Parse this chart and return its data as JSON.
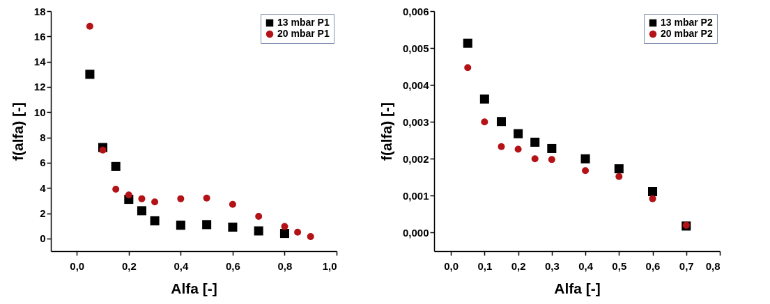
{
  "chart_data": [
    {
      "type": "scatter",
      "xlabel": "Alfa [-]",
      "ylabel": "f(alfa) [-]",
      "xlim": [
        -0.1,
        1.0
      ],
      "ylim": [
        -1,
        18
      ],
      "xticks": [
        {
          "value": 0,
          "label": "0,0"
        },
        {
          "value": 0.2,
          "label": "0,2"
        },
        {
          "value": 0.4,
          "label": "0,4"
        },
        {
          "value": 0.6,
          "label": "0,6"
        },
        {
          "value": 0.8,
          "label": "0,8"
        },
        {
          "value": 1.0,
          "label": "1,0"
        }
      ],
      "yticks": [
        0,
        2,
        4,
        6,
        8,
        10,
        12,
        14,
        16,
        18
      ],
      "legend": "top right",
      "grid": false,
      "series": [
        {
          "name": "13 mbar P1",
          "color": "#000000",
          "marker": "square",
          "x": [
            0.05,
            0.1,
            0.15,
            0.2,
            0.25,
            0.3,
            0.4,
            0.5,
            0.6,
            0.7,
            0.8
          ],
          "values": [
            13,
            7.2,
            5.7,
            3.1,
            2.2,
            1.4,
            1.05,
            1.1,
            0.9,
            0.6,
            0.4
          ]
        },
        {
          "name": "20 mbar P1",
          "color": "#b31217",
          "marker": "circle",
          "x": [
            0.05,
            0.1,
            0.15,
            0.2,
            0.25,
            0.3,
            0.4,
            0.5,
            0.6,
            0.7,
            0.8,
            0.85,
            0.9
          ],
          "values": [
            16.8,
            7.0,
            3.9,
            3.45,
            3.15,
            2.9,
            3.15,
            3.2,
            2.7,
            1.75,
            0.95,
            0.5,
            0.15
          ]
        }
      ]
    },
    {
      "type": "scatter",
      "xlabel": "Alfa [-]",
      "ylabel": "f(alfa) [-]",
      "xlim": [
        -0.05,
        0.8
      ],
      "ylim": [
        -0.0005,
        0.006
      ],
      "xticks": [
        {
          "value": 0,
          "label": "0,0"
        },
        {
          "value": 0.1,
          "label": "0,1"
        },
        {
          "value": 0.2,
          "label": "0,2"
        },
        {
          "value": 0.3,
          "label": "0,3"
        },
        {
          "value": 0.4,
          "label": "0,4"
        },
        {
          "value": 0.5,
          "label": "0,5"
        },
        {
          "value": 0.6,
          "label": "0,6"
        },
        {
          "value": 0.7,
          "label": "0,7"
        },
        {
          "value": 0.8,
          "label": "0,8"
        }
      ],
      "yticks": [
        {
          "value": 0,
          "label": "0,000"
        },
        {
          "value": 0.001,
          "label": "0,001"
        },
        {
          "value": 0.002,
          "label": "0,002"
        },
        {
          "value": 0.003,
          "label": "0,003"
        },
        {
          "value": 0.004,
          "label": "0,004"
        },
        {
          "value": 0.005,
          "label": "0,005"
        },
        {
          "value": 0.006,
          "label": "0,006"
        }
      ],
      "legend": "top right",
      "grid": false,
      "series": [
        {
          "name": "13 mbar P2",
          "color": "#000000",
          "marker": "square",
          "x": [
            0.05,
            0.1,
            0.15,
            0.2,
            0.25,
            0.3,
            0.4,
            0.5,
            0.6,
            0.7
          ],
          "values": [
            0.00513,
            0.00362,
            0.00301,
            0.00268,
            0.00245,
            0.00228,
            0.002,
            0.00173,
            0.00111,
            0.00018
          ]
        },
        {
          "name": "20 mbar P2",
          "color": "#b31217",
          "marker": "circle",
          "x": [
            0.05,
            0.1,
            0.15,
            0.2,
            0.25,
            0.3,
            0.4,
            0.5,
            0.6,
            0.7
          ],
          "values": [
            0.00447,
            0.003,
            0.00233,
            0.00226,
            0.002,
            0.00198,
            0.00168,
            0.00152,
            0.00092,
            0.0002
          ]
        }
      ]
    }
  ]
}
